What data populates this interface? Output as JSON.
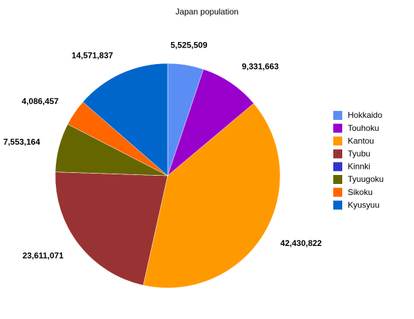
{
  "chart_data": {
    "type": "pie",
    "title": "Japan population",
    "categories": [
      "Hokkaido",
      "Touhoku",
      "Kantou",
      "Tyubu",
      "Kinnki",
      "Tyuugoku",
      "Sikoku",
      "Kyusyuu"
    ],
    "values": [
      5525509,
      9331663,
      42430822,
      23611071,
      0,
      7553164,
      4086457,
      14571837
    ],
    "value_labels": [
      "5,525,509",
      "9,331,663",
      "42,430,822",
      "23,611,071",
      null,
      "7,553,164",
      "4,086,457",
      "14,571,837"
    ],
    "colors": [
      "#5b8ef5",
      "#9900cc",
      "#ff9900",
      "#993333",
      "#3333cc",
      "#666600",
      "#ff6600",
      "#0066cc"
    ],
    "legend": "right"
  }
}
